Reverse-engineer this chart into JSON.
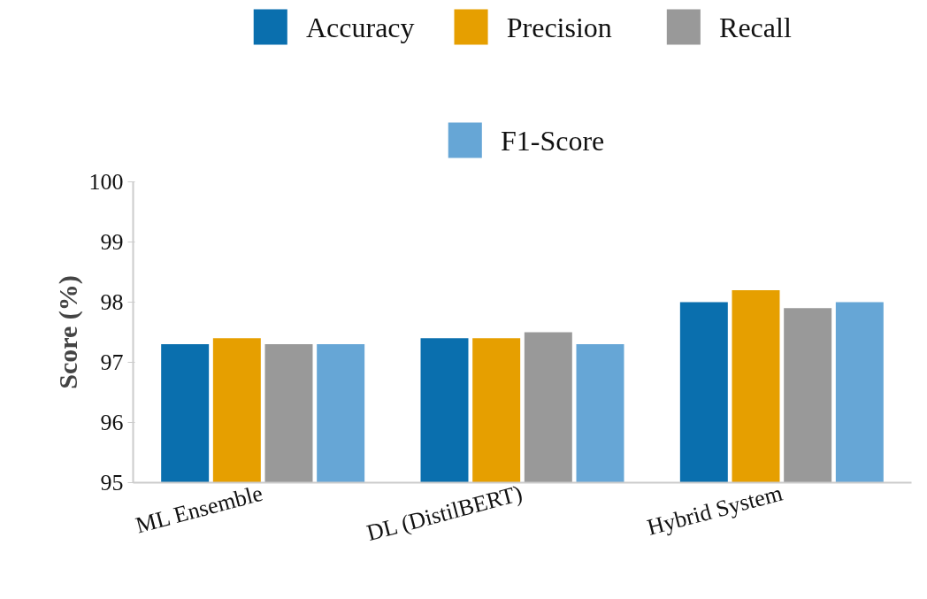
{
  "chart_data": {
    "type": "bar",
    "ylabel": "Score (%)",
    "categories": [
      "ML Ensemble",
      "DL (DistilBERT)",
      "Hybrid System"
    ],
    "series": [
      {
        "name": "Accuracy",
        "color": "#0a6fae",
        "values": [
          97.3,
          97.4,
          98.0
        ]
      },
      {
        "name": "Precision",
        "color": "#e69f00",
        "values": [
          97.4,
          97.4,
          98.2
        ]
      },
      {
        "name": "Recall",
        "color": "#999999",
        "values": [
          97.3,
          97.5,
          97.9
        ]
      },
      {
        "name": "F1-Score",
        "color": "#66a6d6",
        "values": [
          97.3,
          97.3,
          98.0
        ]
      }
    ],
    "ylim": [
      95,
      100
    ],
    "yticks": [
      95,
      96,
      97,
      98,
      99,
      100
    ],
    "grid": false,
    "legend": "top"
  }
}
